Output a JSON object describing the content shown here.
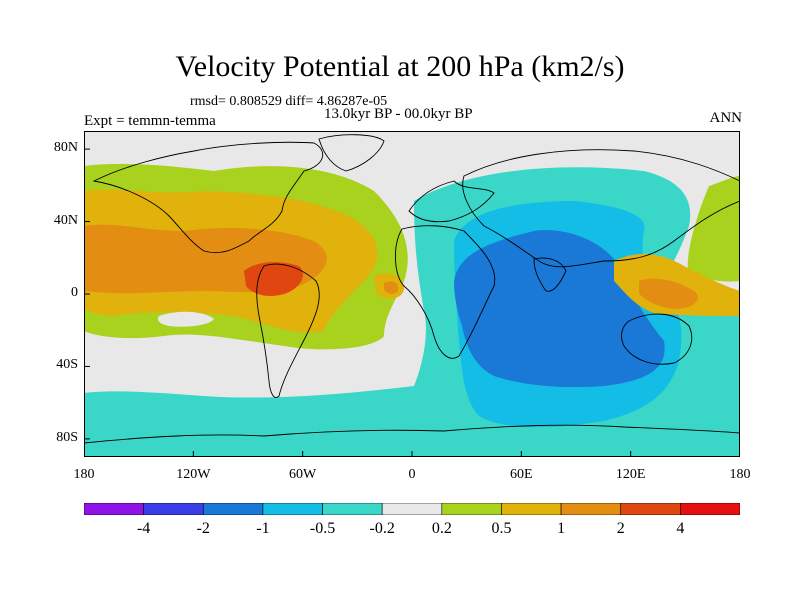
{
  "title": "Velocity Potential at 200 hPa (km2/s)",
  "stats_line": "rmsd= 0.808529 diff= 4.86287e-05",
  "period": "13.0kyr BP - 00.0kyr BP",
  "experiment": "Expt = temmn-temma",
  "season": "ANN",
  "map": {
    "projection": "cylindrical equidistant",
    "lon_range": [
      -180,
      180
    ],
    "lat_range": [
      -90,
      90
    ],
    "y_ticks": [
      {
        "lat": 80,
        "label": "80N"
      },
      {
        "lat": 40,
        "label": "40N"
      },
      {
        "lat": 0,
        "label": "0"
      },
      {
        "lat": -40,
        "label": "40S"
      },
      {
        "lat": -80,
        "label": "80S"
      }
    ],
    "x_ticks": [
      {
        "lon": -180,
        "label": "180"
      },
      {
        "lon": -120,
        "label": "120W"
      },
      {
        "lon": -60,
        "label": "60W"
      },
      {
        "lon": 0,
        "label": "0"
      },
      {
        "lon": 60,
        "label": "60E"
      },
      {
        "lon": 120,
        "label": "120E"
      },
      {
        "lon": 180,
        "label": "180"
      }
    ]
  },
  "colorbar": {
    "colors": [
      "#8f13e6",
      "#3a3ee6",
      "#1a78d6",
      "#13bde6",
      "#3ad6c8",
      "#e8e8e8",
      "#a8d21e",
      "#e2b20c",
      "#e38d12",
      "#e0460f",
      "#e61010"
    ],
    "labels": [
      "-4",
      "-2",
      "-1",
      "-0.5",
      "-0.2",
      "0.2",
      "0.5",
      "1",
      "2",
      "4"
    ]
  }
}
